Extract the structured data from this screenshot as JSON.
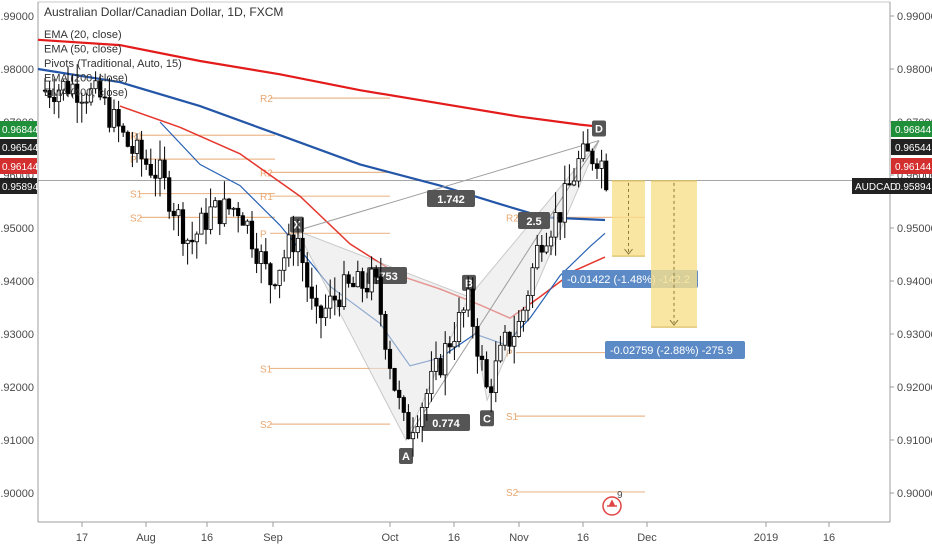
{
  "header": {
    "title": "Australian Dollar/Canadian Dollar, 1D, FXCM",
    "indicators": [
      "EMA (20, close)",
      "EMA (50, close)",
      "Pivots (Traditional, Auto, 15)",
      "EMA (200, close)",
      "EMA (400, close)"
    ]
  },
  "colors": {
    "up": "#ffffff",
    "down": "#000000",
    "ema20": "#2962b5",
    "ema50": "#e5372e",
    "ema200": "#2456a8",
    "ema400": "#e31b1b",
    "pivot": "#e8a872",
    "tag_green": "#1f8f3a",
    "tag_red": "#d32f2f",
    "tag_dark": "#222222",
    "pattern_fill": "#e6e6e6",
    "pattern_label": "#555555",
    "target_box": "#f9e08c",
    "measure_label": "#5b8ac6"
  },
  "chart_data": {
    "type": "candlestick",
    "symbol": "AUDCAD",
    "ylim": [
      0.895,
      0.9905
    ],
    "y_ticks": [
      "0.99000",
      "0.98000",
      "0.97000",
      "0.96000",
      "0.95000",
      "0.94000",
      "0.93000",
      "0.92000",
      "0.91000",
      "0.90000"
    ],
    "x_ticks": [
      "17",
      "Aug",
      "16",
      "Sep",
      "Oct",
      "16",
      "Nov",
      "16",
      "Dec",
      "2019",
      "16"
    ],
    "price_tags": [
      {
        "value": "0.96844",
        "kind": "green"
      },
      {
        "value": "0.96544",
        "kind": "dark"
      },
      {
        "value": "0.96144",
        "kind": "red"
      },
      {
        "value": "0.95894",
        "kind": "dark"
      }
    ],
    "symbol_tag": "AUDCAD",
    "current_price": 0.95894,
    "pivot_labels": [
      "R2",
      "R1",
      "P",
      "S1",
      "S2"
    ],
    "pattern": {
      "points": [
        {
          "label": "X",
          "price": 0.9495
        },
        {
          "label": "A",
          "price": 0.91
        },
        {
          "label": "B",
          "price": 0.937
        },
        {
          "label": "C",
          "price": 0.9175
        },
        {
          "label": "D",
          "price": 0.9665
        }
      ],
      "ratios": [
        "1.742",
        ".753",
        "0.774",
        "2.5"
      ]
    },
    "measurements": [
      {
        "text": "-0.01422 (-1.48%) -142.2",
        "from": 0.9589,
        "to": 0.9447
      },
      {
        "text": "-0.02759 (-2.88%) -275.9",
        "from": 0.9589,
        "to": 0.9313
      }
    ],
    "event_badge": "9"
  }
}
